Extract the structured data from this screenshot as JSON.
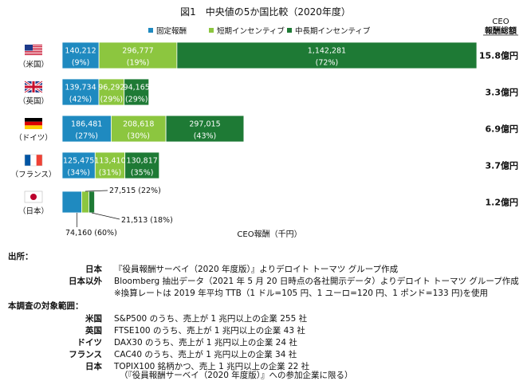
{
  "chart_data": {
    "type": "bar",
    "orientation": "horizontal",
    "stacked": true,
    "title": "図1　中央値の5か国比較（2020年度）",
    "xlabel": "CEO報酬（千円）",
    "total_header": "CEO報酬総額",
    "series": [
      {
        "name": "固定報酬",
        "color": "#1f8ac0"
      },
      {
        "name": "短期インセンティブ",
        "color": "#8cc63f"
      },
      {
        "name": "中長期インセンティブ",
        "color": "#1e7a35"
      }
    ],
    "countries": [
      {
        "label": "（米国）",
        "flag": "us-flag",
        "values": [
          140212,
          296777,
          1142281
        ],
        "labels": [
          "140,212",
          "296,777",
          "1,142,281"
        ],
        "pcts": [
          "(9%)",
          "(19%)",
          "(72%)"
        ],
        "total": "15.8億円"
      },
      {
        "label": "（英国）",
        "flag": "uk-flag",
        "values": [
          139734,
          96292,
          94165
        ],
        "labels": [
          "139,734",
          "96,292",
          "94,165"
        ],
        "pcts": [
          "(42%)",
          "(29%)",
          "(29%)"
        ],
        "total": "3.3億円"
      },
      {
        "label": "（ドイツ）",
        "flag": "germany-flag",
        "values": [
          186481,
          208618,
          297015
        ],
        "labels": [
          "186,481",
          "208,618",
          "297,015"
        ],
        "pcts": [
          "(27%)",
          "(30%)",
          "(43%)"
        ],
        "total": "6.9億円"
      },
      {
        "label": "（フランス）",
        "flag": "france-flag",
        "values": [
          125475,
          113410,
          130817
        ],
        "labels": [
          "125,475",
          "113,410",
          "130,817"
        ],
        "pcts": [
          "(34%)",
          "(31%)",
          "(35%)"
        ],
        "total": "3.7億円"
      },
      {
        "label": "（日本）",
        "flag": "japan-flag",
        "values": [
          74160,
          27515,
          21513
        ],
        "labels": [
          "74,160 (60%)",
          "27,515 (22%)",
          "21,513 (18%)"
        ],
        "pcts": [
          "",
          "",
          ""
        ],
        "total": "1.2億円"
      }
    ]
  },
  "notes": {
    "source_heading": "出所：",
    "sources": [
      {
        "key": "日本",
        "text": "『役員報酬サーベイ（2020 年度版）』よりデロイト トーマツ グループ作成"
      },
      {
        "key": "日本以外",
        "text": "Bloomberg 抽出データ（2021 年 5 月 20 日時点の各社開示データ）よりデロイト トーマツ グループ作成"
      },
      {
        "key": "",
        "text": "※換算レートは 2019 年平均 TTB（1 ドル=105 円、1 ユーロ=120 円、1 ポンド=133 円)を使用"
      }
    ],
    "scope_heading": "本調査の対象範囲：",
    "scope": [
      {
        "key": "米国",
        "text": "S&P500 のうち、売上が 1 兆円以上の企業 255 社"
      },
      {
        "key": "英国",
        "text": "FTSE100 のうち、売上が 1 兆円以上の企業 43 社"
      },
      {
        "key": "ドイツ",
        "text": "DAX30 のうち、売上が 1 兆円以上の企業 24 社"
      },
      {
        "key": "フランス",
        "text": "CAC40 のうち、売上が 1 兆円以上の企業 34 社"
      },
      {
        "key": "日本",
        "text": "TOPIX100 銘柄かつ、売上 1 兆円以上の企業 22 社"
      },
      {
        "key": "",
        "text": "（『役員報酬サーベイ（2020 年度版）』への参加企業に限る）"
      }
    ]
  }
}
